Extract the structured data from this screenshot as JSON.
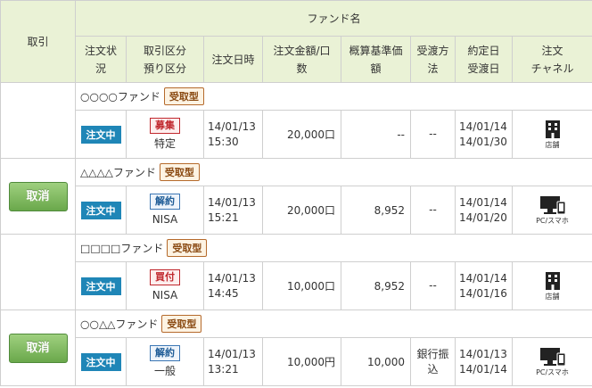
{
  "header": {
    "torihiki": "取引",
    "fund_name": "ファンド名",
    "cols": {
      "status_a": "注文状",
      "status_b": "況",
      "kubun_a": "取引区分",
      "kubun_b": "預り区分",
      "datetime": "注文日時",
      "amount_a": "注文金額/口",
      "amount_b": "数",
      "nav_a": "概算基準価",
      "nav_b": "額",
      "method_a": "受渡方",
      "method_b": "法",
      "dates_a": "約定日",
      "dates_b": "受渡日",
      "channel_a": "注文",
      "channel_b": "チャネル"
    }
  },
  "cancel_label": "取消",
  "orders": [
    {
      "fund": "○○○○ファンド",
      "tag": "受取型",
      "status": "注文中",
      "kubun": "募集",
      "kubun_color": "red",
      "azukari": "特定",
      "date": "14/01/13",
      "time": "15:30",
      "amount": "20,000口",
      "nav": "--",
      "method_a": "--",
      "method_b": "",
      "exec_date": "14/01/14",
      "deliv_date": "14/01/30",
      "channel": "店舗",
      "channel_icon": "building-icon",
      "cancellable": false
    },
    {
      "fund": "△△△△ファンド",
      "tag": "受取型",
      "status": "注文中",
      "kubun": "解約",
      "kubun_color": "blue",
      "azukari": "NISA",
      "date": "14/01/13",
      "time": "15:21",
      "amount": "20,000口",
      "nav": "8,952",
      "method_a": "--",
      "method_b": "",
      "exec_date": "14/01/14",
      "deliv_date": "14/01/20",
      "channel": "PC/スマホ",
      "channel_icon": "pc-smartphone-icon",
      "cancellable": true
    },
    {
      "fund": "□□□□ファンド",
      "tag": "受取型",
      "status": "注文中",
      "kubun": "買付",
      "kubun_color": "red",
      "azukari": "NISA",
      "date": "14/01/13",
      "time": "14:45",
      "amount": "10,000口",
      "nav": "8,952",
      "method_a": "--",
      "method_b": "",
      "exec_date": "14/01/14",
      "deliv_date": "14/01/16",
      "channel": "店舗",
      "channel_icon": "building-icon",
      "cancellable": false
    },
    {
      "fund": "○○△△ファンド",
      "tag": "受取型",
      "status": "注文中",
      "kubun": "解約",
      "kubun_color": "blue",
      "azukari": "一般",
      "date": "14/01/13",
      "time": "13:21",
      "amount": "10,000円",
      "nav": "10,000",
      "method_a": "銀行振",
      "method_b": "込",
      "exec_date": "14/01/13",
      "deliv_date": "14/01/14",
      "channel": "PC/スマホ",
      "channel_icon": "pc-smartphone-icon",
      "cancellable": true
    }
  ]
}
